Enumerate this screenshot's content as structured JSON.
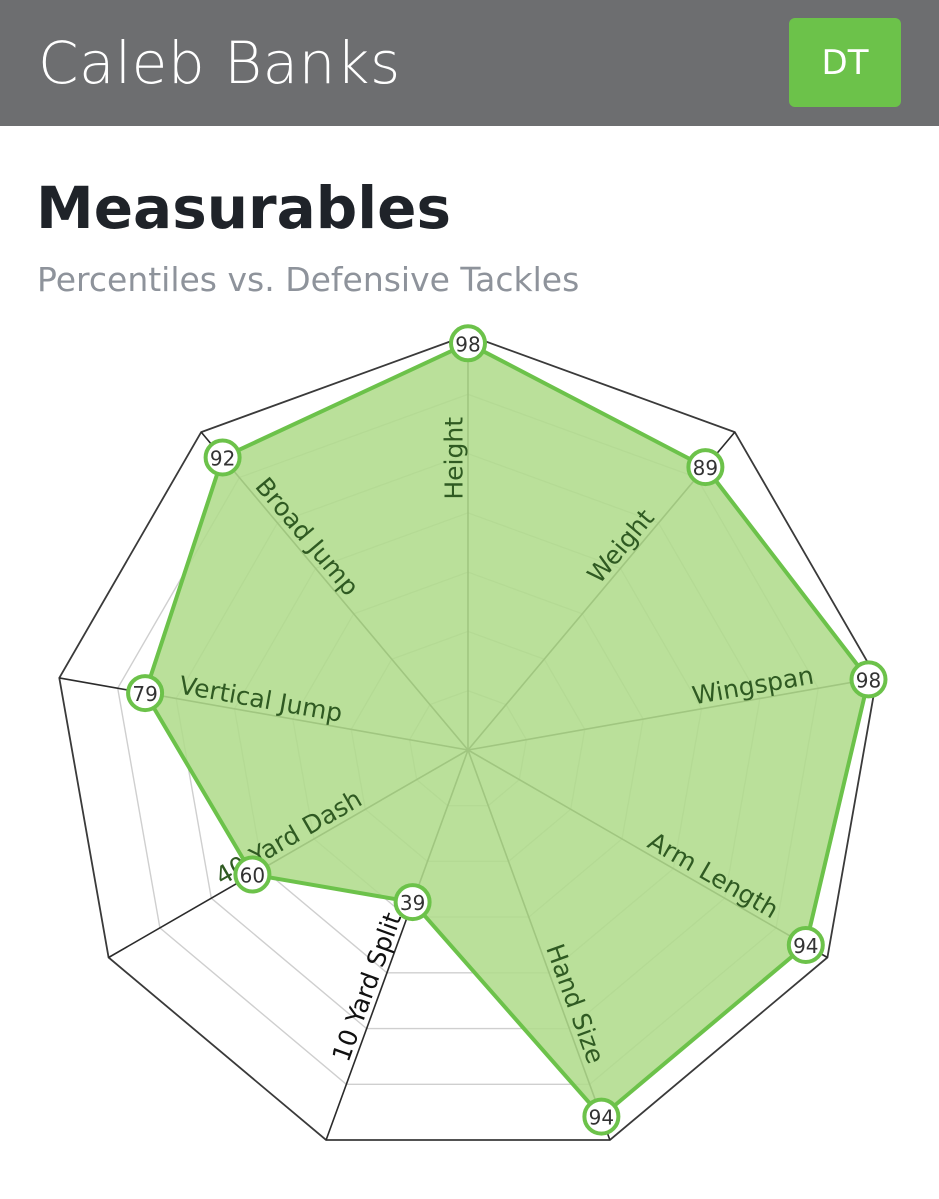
{
  "header": {
    "player_name": "Caleb Banks",
    "position": "DT"
  },
  "colors": {
    "header_bg": "#6d6e70",
    "accent": "#6cc24a",
    "fill": "#b0dc8c",
    "stroke": "#6cc24a"
  },
  "chart_data": {
    "type": "radar",
    "title": "Measurables",
    "subtitle": "Percentiles vs. Defensive Tackles",
    "range": [
      0,
      100
    ],
    "grid_rings": 7,
    "categories": [
      "Height",
      "Weight",
      "Wingspan",
      "Arm Length",
      "Hand Size",
      "10 Yard Split",
      "40 Yard Dash",
      "Vertical Jump",
      "Broad Jump"
    ],
    "values": [
      98,
      89,
      98,
      94,
      94,
      39,
      60,
      79,
      92
    ]
  }
}
